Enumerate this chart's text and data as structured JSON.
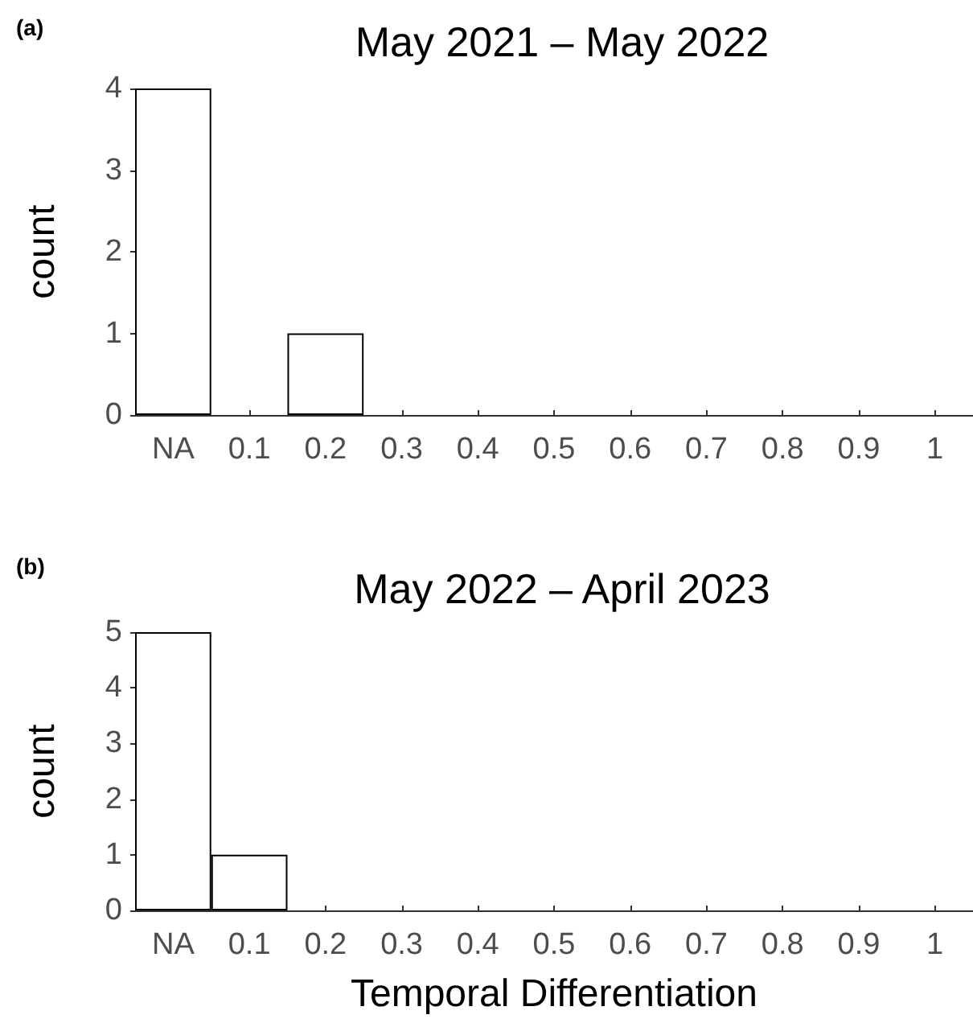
{
  "chart_data": [
    {
      "type": "bar",
      "title": "May 2021 – May 2022",
      "ylabel": "count",
      "annotations": [
        "(a)"
      ],
      "categories": [
        "NA",
        "0.1",
        "0.2",
        "0.3",
        "0.4",
        "0.5",
        "0.6",
        "0.7",
        "0.8",
        "0.9",
        "1"
      ],
      "values": [
        4,
        0,
        1,
        0,
        0,
        0,
        0,
        0,
        0,
        0,
        0
      ],
      "color": "#ffffff",
      "ylim": [
        0,
        4
      ],
      "yticks": [
        0,
        1,
        2,
        3,
        4
      ],
      "grid": false
    },
    {
      "type": "bar",
      "title": "May 2022 – April 2023",
      "xlabel": "Temporal Differentiation",
      "ylabel": "count",
      "annotations": [
        "(b)"
      ],
      "categories": [
        "NA",
        "0.1",
        "0.2",
        "0.3",
        "0.4",
        "0.5",
        "0.6",
        "0.7",
        "0.8",
        "0.9",
        "1"
      ],
      "values": [
        5,
        1,
        0,
        0,
        0,
        0,
        0,
        0,
        0,
        0,
        0
      ],
      "color": "#ffffff",
      "ylim": [
        0,
        5
      ],
      "yticks": [
        0,
        1,
        2,
        3,
        4,
        5
      ],
      "grid": false
    }
  ]
}
